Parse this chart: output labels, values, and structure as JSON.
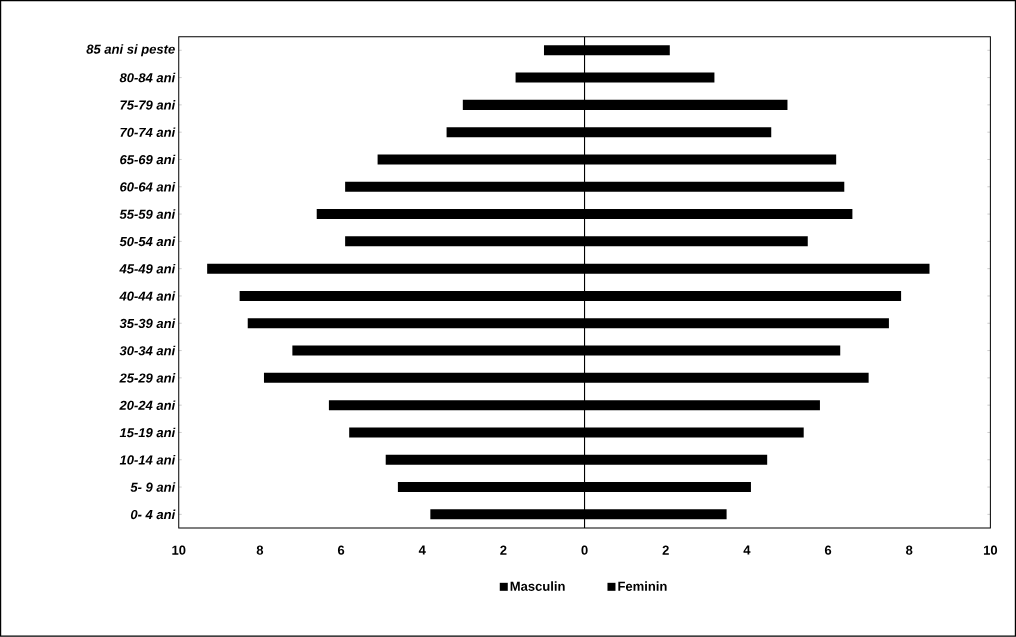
{
  "chart_data": {
    "type": "bar",
    "orientation": "horizontal",
    "categories": [
      "85 ani si peste",
      "80-84 ani",
      "75-79 ani",
      "70-74 ani",
      "65-69 ani",
      "60-64 ani",
      "55-59 ani",
      "50-54 ani",
      "45-49 ani",
      "40-44 ani",
      "35-39 ani",
      "30-34 ani",
      "25-29 ani",
      "20-24 ani",
      "15-19 ani",
      "10-14 ani",
      "5- 9 ani",
      "0- 4 ani"
    ],
    "series": [
      {
        "name": "Masculin",
        "color": "#000000",
        "values": [
          -1.0,
          -1.7,
          -3.0,
          -3.4,
          -5.1,
          -5.9,
          -6.6,
          -5.9,
          -9.3,
          -8.5,
          -8.3,
          -7.2,
          -7.9,
          -6.3,
          -5.8,
          -4.9,
          -4.6,
          -3.8
        ]
      },
      {
        "name": "Feminin",
        "color": "#000000",
        "values": [
          2.1,
          3.2,
          5.0,
          4.6,
          6.2,
          6.4,
          6.6,
          5.5,
          8.5,
          7.8,
          7.5,
          6.3,
          7.0,
          5.8,
          5.4,
          4.5,
          4.1,
          3.5
        ]
      }
    ],
    "xlim": [
      -10,
      10
    ],
    "xticks": [
      {
        "value": -10,
        "label": "10"
      },
      {
        "value": -8,
        "label": "8"
      },
      {
        "value": -6,
        "label": "6"
      },
      {
        "value": -4,
        "label": "4"
      },
      {
        "value": -2,
        "label": "2"
      },
      0,
      2,
      4,
      6,
      8,
      10
    ],
    "stacked": true,
    "legend": "bottom"
  }
}
